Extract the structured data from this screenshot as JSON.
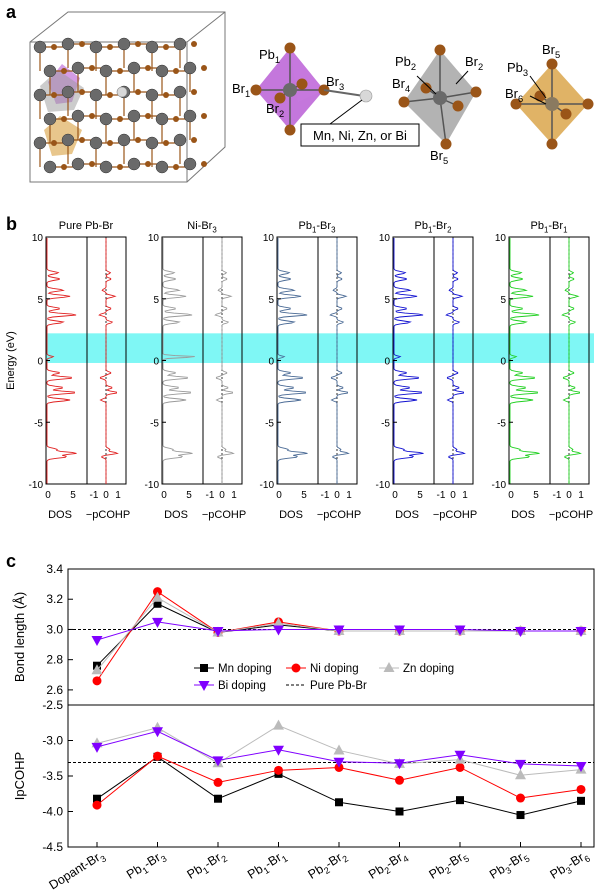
{
  "panel_labels": {
    "a": "a",
    "b": "b",
    "c": "c"
  },
  "panel_a": {
    "octahedron1": {
      "atoms": [
        "Pb",
        "Br",
        "Br",
        "Br"
      ],
      "subs": [
        "1",
        "1",
        "2",
        "3"
      ]
    },
    "octahedron2": {
      "atoms": [
        "Pb",
        "Br",
        "Br",
        "Br"
      ],
      "subs": [
        "2",
        "2",
        "4",
        "5"
      ]
    },
    "octahedron3": {
      "atoms": [
        "Br",
        "Pb",
        "Br"
      ],
      "subs": [
        "5",
        "3",
        "6"
      ]
    },
    "dopant_box": "Mn, Ni, Zn, or Bi",
    "colors": {
      "octa1": "#b04ad0",
      "octa2": "#9a9a9a",
      "octa3": "#d8a040",
      "br": "#9a5518",
      "pb": "#6a6a6a",
      "dopant": "#d8d8d8"
    }
  },
  "panel_b": {
    "ylabel": "Energy (eV)",
    "yticks": [
      "10",
      "5",
      "0",
      "-5",
      "-10"
    ],
    "dos_xticks": [
      "0",
      "5"
    ],
    "cohp_xticks": [
      "-1",
      "0",
      "1"
    ],
    "dos_label": "DOS",
    "cohp_label": "−pCOHP",
    "highlight_band": {
      "from": -0.2,
      "to": 2.2,
      "color": "#7ff7f5"
    },
    "panels": [
      {
        "label": "Pure Pb-Br",
        "sub": "",
        "tail": "",
        "color": "#e02020"
      },
      {
        "label": "Ni-Br",
        "sub": "3",
        "tail": "",
        "color": "#9a9a9a"
      },
      {
        "label": "Pb",
        "sub": "1",
        "tail": "-Br",
        "sub2": "3",
        "color": "#4a6a95"
      },
      {
        "label": "Pb",
        "sub": "1",
        "tail": "-Br",
        "sub2": "2",
        "color": "#1010d0"
      },
      {
        "label": "Pb",
        "sub": "1",
        "tail": "-Br",
        "sub2": "1",
        "color": "#20d020"
      }
    ]
  },
  "chart_data": [
    {
      "type": "line",
      "ylabel": "Bond length (Å)",
      "ylim": [
        2.5,
        3.4
      ],
      "yticks": [
        "3.4",
        "3.2",
        "3.0",
        "2.8",
        "2.6"
      ],
      "categories": [
        "Dopant-Br3",
        "Pb1-Br3",
        "Pb1-Br2",
        "Pb1-Br1",
        "Pb2-Br2",
        "Pb2-Br4",
        "Pb2-Br5",
        "Pb3-Br5",
        "Pb3-Br6"
      ],
      "reference": {
        "name": "Pure Pb-Br",
        "value": 3.0
      },
      "series": [
        {
          "name": "Mn doping",
          "color": "#000000",
          "marker": "square",
          "values": [
            2.76,
            3.17,
            2.98,
            3.03,
            2.99,
            2.99,
            2.99,
            2.99,
            2.99
          ]
        },
        {
          "name": "Ni doping",
          "color": "#ff0000",
          "marker": "circle",
          "values": [
            2.66,
            3.25,
            2.98,
            3.05,
            2.99,
            2.99,
            2.99,
            2.99,
            2.99
          ]
        },
        {
          "name": "Zn doping",
          "color": "#bbbbbb",
          "marker": "triangle-up",
          "values": [
            2.73,
            3.21,
            2.98,
            3.04,
            2.99,
            2.99,
            2.99,
            2.99,
            2.99
          ]
        },
        {
          "name": "Bi doping",
          "color": "#8000ff",
          "marker": "triangle-down",
          "values": [
            2.93,
            3.05,
            2.99,
            3.0,
            3.0,
            3.0,
            3.0,
            2.99,
            2.99
          ]
        }
      ]
    },
    {
      "type": "line",
      "ylabel": "IpCOHP",
      "ylim": [
        -4.5,
        -2.5
      ],
      "yticks": [
        "-2.5",
        "-3.0",
        "-3.5",
        "-4.0",
        "-4.5"
      ],
      "categories": [
        "Dopant-Br3",
        "Pb1-Br3",
        "Pb1-Br2",
        "Pb1-Br1",
        "Pb2-Br2",
        "Pb2-Br4",
        "Pb2-Br5",
        "Pb3-Br5",
        "Pb3-Br6"
      ],
      "reference": {
        "name": "Pure Pb-Br",
        "value": -3.31
      },
      "series": [
        {
          "name": "Mn doping",
          "color": "#000000",
          "marker": "square",
          "values": [
            -3.82,
            -3.23,
            -3.82,
            -3.47,
            -3.87,
            -4.0,
            -3.84,
            -4.05,
            -3.85
          ]
        },
        {
          "name": "Ni doping",
          "color": "#ff0000",
          "marker": "circle",
          "values": [
            -3.91,
            -3.22,
            -3.59,
            -3.42,
            -3.38,
            -3.56,
            -3.38,
            -3.81,
            -3.69
          ]
        },
        {
          "name": "Zn doping",
          "color": "#bbbbbb",
          "marker": "triangle-up",
          "values": [
            -3.04,
            -2.82,
            -3.32,
            -2.79,
            -3.14,
            -3.33,
            -3.27,
            -3.49,
            -3.41
          ]
        },
        {
          "name": "Bi doping",
          "color": "#8000ff",
          "marker": "triangle-down",
          "values": [
            -3.09,
            -2.87,
            -3.28,
            -3.13,
            -3.3,
            -3.32,
            -3.2,
            -3.33,
            -3.36
          ]
        }
      ]
    }
  ],
  "legend": [
    {
      "name": "Mn doping",
      "color": "#000000",
      "marker": "square"
    },
    {
      "name": "Ni doping",
      "color": "#ff0000",
      "marker": "circle"
    },
    {
      "name": "Zn doping",
      "color": "#bbbbbb",
      "marker": "triangle-up"
    },
    {
      "name": "Bi doping",
      "color": "#8000ff",
      "marker": "triangle-down"
    },
    {
      "name": "Pure Pb-Br",
      "color": "#000000",
      "marker": "dashed-line"
    }
  ],
  "xlabels": [
    {
      "t1": "Dopant-Br",
      "s1": "3"
    },
    {
      "t1": "Pb",
      "s1": "1",
      "t2": "-Br",
      "s2": "3"
    },
    {
      "t1": "Pb",
      "s1": "1",
      "t2": "-Br",
      "s2": "2"
    },
    {
      "t1": "Pb",
      "s1": "1",
      "t2": "-Br",
      "s2": "1"
    },
    {
      "t1": "Pb",
      "s1": "2",
      "t2": "-Br",
      "s2": "2"
    },
    {
      "t1": "Pb",
      "s1": "2",
      "t2": "-Br",
      "s2": "4"
    },
    {
      "t1": "Pb",
      "s1": "2",
      "t2": "-Br",
      "s2": "5"
    },
    {
      "t1": "Pb",
      "s1": "3",
      "t2": "-Br",
      "s2": "5"
    },
    {
      "t1": "Pb",
      "s1": "3",
      "t2": "-Br",
      "s2": "6"
    }
  ]
}
